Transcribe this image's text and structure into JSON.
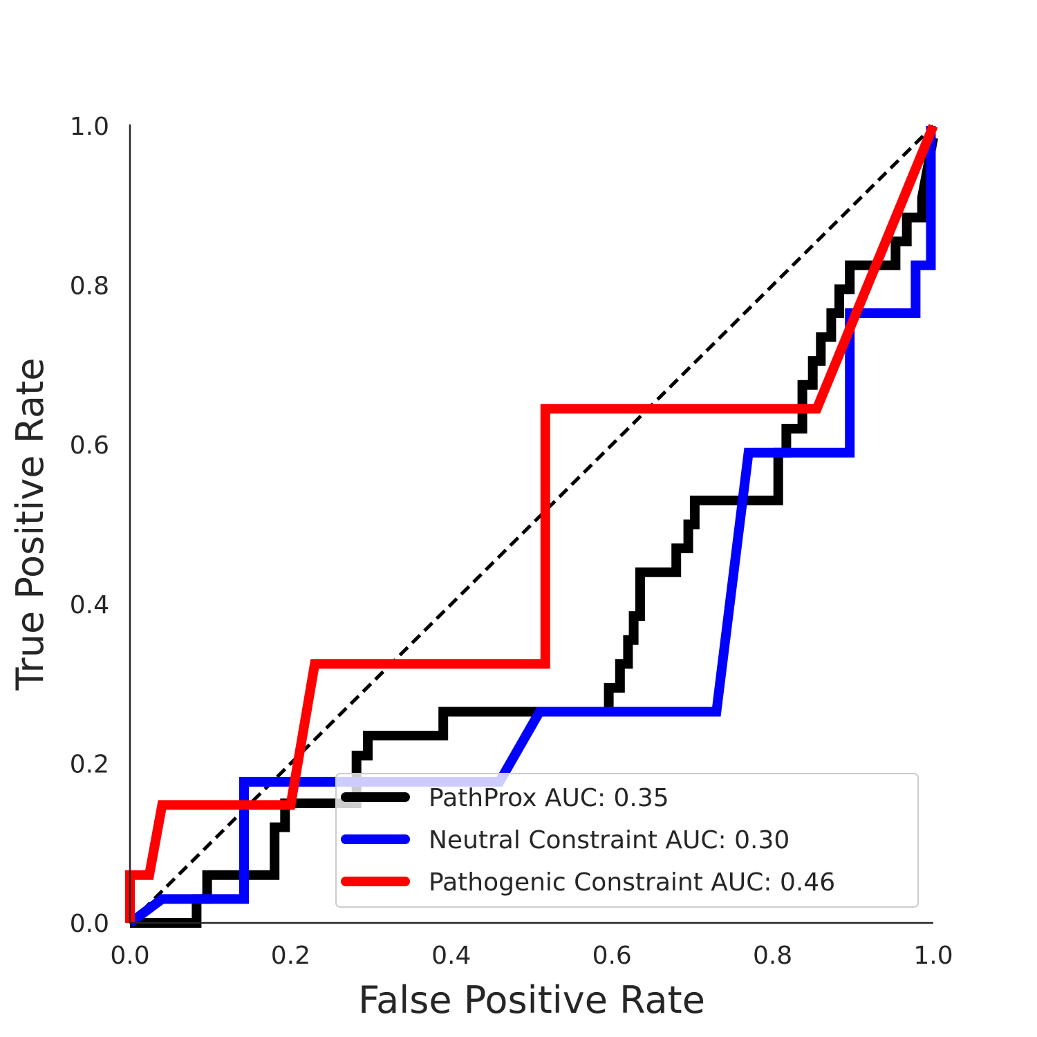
{
  "chart_data": {
    "type": "line",
    "xlabel": "False Positive Rate",
    "ylabel": "True Positive Rate",
    "xlim": [
      0.0,
      1.0
    ],
    "ylim": [
      0.0,
      1.0
    ],
    "xticks": [
      "0.0",
      "0.2",
      "0.4",
      "0.6",
      "0.8",
      "1.0"
    ],
    "yticks": [
      "0.0",
      "0.2",
      "0.4",
      "0.6",
      "0.8",
      "1.0"
    ],
    "grid": false,
    "legend_position": "lower-right",
    "diagonal": {
      "x": [
        0,
        1
      ],
      "y": [
        0,
        1
      ],
      "color": "#000000",
      "style": "dashed"
    },
    "series": [
      {
        "name": "PathProx AUC:  0.35",
        "color": "#000000",
        "x": [
          0.0,
          0.083,
          0.083,
          0.096,
          0.096,
          0.18,
          0.18,
          0.193,
          0.193,
          0.282,
          0.282,
          0.296,
          0.296,
          0.39,
          0.39,
          0.596,
          0.596,
          0.61,
          0.61,
          0.62,
          0.62,
          0.627,
          0.627,
          0.635,
          0.635,
          0.68,
          0.68,
          0.695,
          0.695,
          0.703,
          0.703,
          0.807,
          0.807,
          0.817,
          0.817,
          0.837,
          0.837,
          0.85,
          0.85,
          0.86,
          0.86,
          0.873,
          0.873,
          0.883,
          0.883,
          0.896,
          0.896,
          0.953,
          0.953,
          0.967,
          0.967,
          0.986,
          0.986,
          1.0
        ],
        "y": [
          0.0,
          0.0,
          0.03,
          0.03,
          0.06,
          0.06,
          0.12,
          0.12,
          0.15,
          0.15,
          0.21,
          0.21,
          0.235,
          0.235,
          0.265,
          0.265,
          0.295,
          0.295,
          0.325,
          0.325,
          0.355,
          0.355,
          0.385,
          0.385,
          0.44,
          0.44,
          0.47,
          0.47,
          0.5,
          0.5,
          0.53,
          0.53,
          0.59,
          0.59,
          0.62,
          0.62,
          0.675,
          0.675,
          0.705,
          0.705,
          0.735,
          0.735,
          0.765,
          0.765,
          0.795,
          0.795,
          0.825,
          0.825,
          0.855,
          0.855,
          0.885,
          0.885,
          0.91,
          0.985
        ]
      },
      {
        "name": "Neutral Constraint AUC:  0.30",
        "color": "#0000ff",
        "x": [
          0.0,
          0.04,
          0.142,
          0.142,
          0.46,
          0.51,
          0.73,
          0.77,
          0.896,
          0.896,
          0.978,
          0.978,
          0.997,
          0.997
        ],
        "y": [
          0.0,
          0.03,
          0.03,
          0.177,
          0.177,
          0.265,
          0.265,
          0.59,
          0.59,
          0.765,
          0.765,
          0.825,
          0.825,
          1.0
        ]
      },
      {
        "name": "Pathogenic Constraint AUC:  0.46",
        "color": "#ff0000",
        "x": [
          0.0,
          0.0,
          0.024,
          0.04,
          0.2,
          0.23,
          0.517,
          0.517,
          0.855,
          1.0
        ],
        "y": [
          0.0,
          0.06,
          0.06,
          0.148,
          0.148,
          0.325,
          0.325,
          0.645,
          0.645,
          1.0
        ]
      }
    ]
  }
}
